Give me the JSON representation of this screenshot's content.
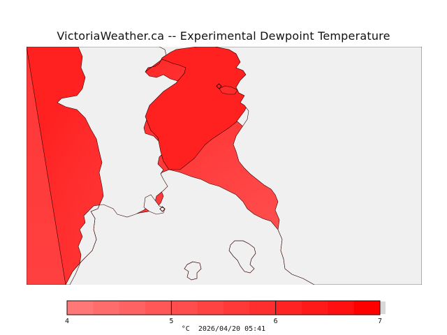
{
  "title": "VictoriaWeather.ca -- Experimental Dewpoint Temperature",
  "map": {
    "water_color": "#f0f0f0",
    "land_palette": [
      "#ff4d4d",
      "#ff4444",
      "#ff3b3b",
      "#ff3333",
      "#ff2a2a",
      "#ff2222"
    ],
    "station_markers": 2
  },
  "legend": {
    "unit": "°C",
    "timestamp": "2026/04/20 05:41",
    "ticks": [
      "4",
      "5",
      "6",
      "7"
    ],
    "range": [
      4,
      7
    ],
    "swatches": [
      "#ff7777",
      "#ff6c6c",
      "#ff6262",
      "#ff5757",
      "#ff4d4d",
      "#ff4343",
      "#ff3838",
      "#ff2e2e",
      "#ff2323",
      "#ff1919",
      "#ff0f0f",
      "#ff0000"
    ]
  }
}
